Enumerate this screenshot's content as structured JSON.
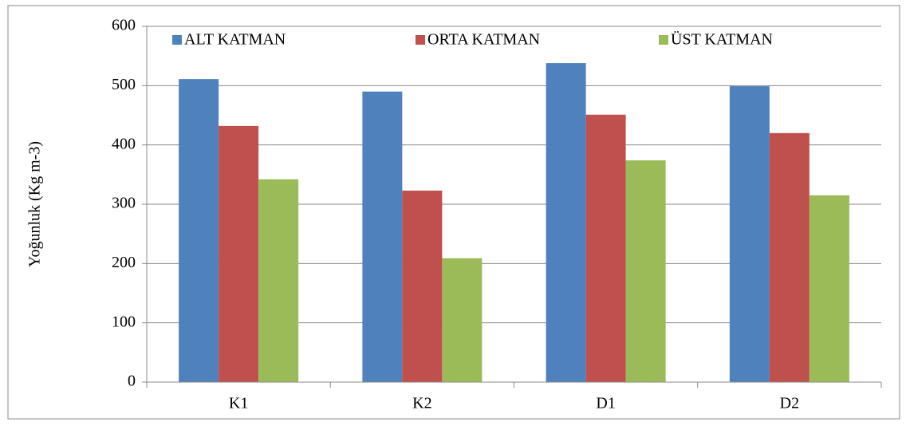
{
  "chart_data": {
    "type": "bar",
    "y_label": "Yoğunluk (Kg m-3)",
    "categories": [
      "K1",
      "K2",
      "D1",
      "D2"
    ],
    "series": [
      {
        "name": "ALT KATMAN",
        "color": "#4f81bd",
        "values": [
          511,
          490,
          538,
          499
        ]
      },
      {
        "name": "ORTA KATMAN",
        "color": "#c0504d",
        "values": [
          432,
          323,
          451,
          420
        ]
      },
      {
        "name": "ÜST KATMAN",
        "color": "#9bbb59",
        "values": [
          342,
          209,
          374,
          315
        ]
      }
    ],
    "ylim": [
      0,
      600
    ],
    "yticks": [
      0,
      100,
      200,
      300,
      400,
      500,
      600
    ],
    "grid": true,
    "legend": "top"
  }
}
